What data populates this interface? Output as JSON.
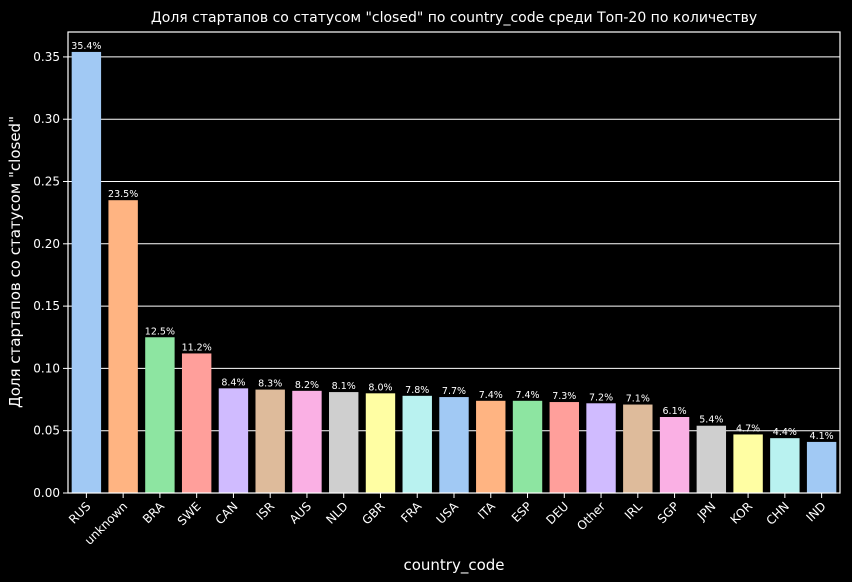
{
  "chart_data": {
    "type": "bar",
    "title": "Доля стартапов со статусом \"closed\" по country_code среди Топ-20 по количеству",
    "xlabel": "country_code",
    "ylabel": "Доля стартапов со статусом \"closed\"",
    "categories": [
      "RUS",
      "unknown",
      "BRA",
      "SWE",
      "CAN",
      "ISR",
      "AUS",
      "NLD",
      "GBR",
      "FRA",
      "USA",
      "ITA",
      "ESP",
      "DEU",
      "Other",
      "IRL",
      "SGP",
      "JPN",
      "KOR",
      "CHN",
      "IND"
    ],
    "values": [
      0.354,
      0.235,
      0.125,
      0.112,
      0.084,
      0.083,
      0.082,
      0.081,
      0.08,
      0.078,
      0.077,
      0.074,
      0.074,
      0.073,
      0.072,
      0.071,
      0.061,
      0.054,
      0.047,
      0.044,
      0.041
    ],
    "value_labels": [
      "35.4%",
      "23.5%",
      "12.5%",
      "11.2%",
      "8.4%",
      "8.3%",
      "8.2%",
      "8.1%",
      "8.0%",
      "7.8%",
      "7.7%",
      "7.4%",
      "7.4%",
      "7.3%",
      "7.2%",
      "7.1%",
      "6.1%",
      "5.4%",
      "4.7%",
      "4.4%",
      "4.1%"
    ],
    "ylim": [
      0,
      0.37
    ],
    "yticks": [
      "0.00",
      "0.05",
      "0.10",
      "0.15",
      "0.20",
      "0.25",
      "0.30",
      "0.35"
    ],
    "grid": "y",
    "colors": [
      "#a1c9f4",
      "#ffb482",
      "#8de5a1",
      "#ff9f9b",
      "#d0bbff",
      "#debb9b",
      "#fab0e4",
      "#cfcfcf",
      "#fffea3",
      "#b9f2f0"
    ],
    "background": "#000000"
  }
}
